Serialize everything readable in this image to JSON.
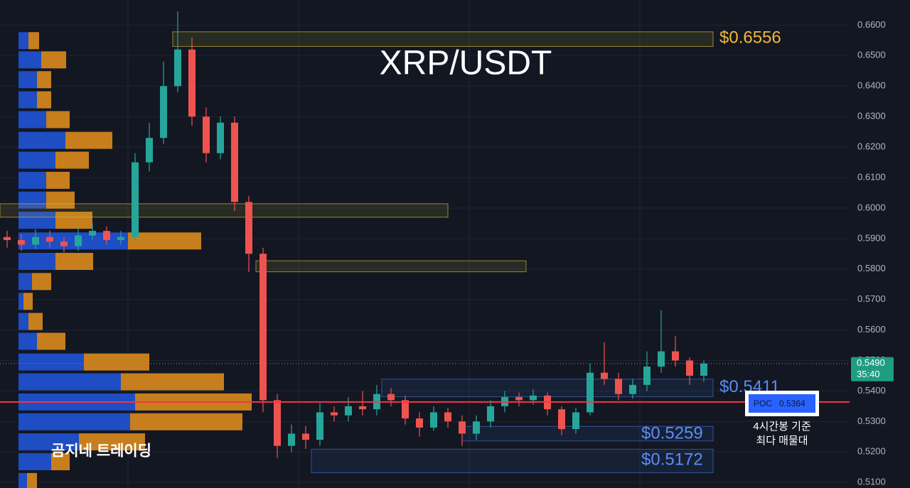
{
  "chart_data": {
    "type": "candlestick",
    "title": "XRP/USDT",
    "watermark": "곰지네 트레이딩",
    "note": [
      "4시간봉 기준",
      "최다 매물대"
    ],
    "up_color": "#26a69a",
    "down_color": "#ef5350",
    "grid": true,
    "ylim": [
      0.50818,
      0.66824
    ],
    "yticks": [
      {
        "value": 0.66,
        "label": "0.6600"
      },
      {
        "value": 0.65,
        "label": "0.6500"
      },
      {
        "value": 0.64,
        "label": "0.6400"
      },
      {
        "value": 0.63,
        "label": "0.6300"
      },
      {
        "value": 0.62,
        "label": "0.6200"
      },
      {
        "value": 0.61,
        "label": "0.6100"
      },
      {
        "value": 0.6,
        "label": "0.6000"
      },
      {
        "value": 0.59,
        "label": "0.5900"
      },
      {
        "value": 0.58,
        "label": "0.5800"
      },
      {
        "value": 0.57,
        "label": "0.5700"
      },
      {
        "value": 0.56,
        "label": "0.5600"
      },
      {
        "value": 0.55,
        "label": "0.5500"
      },
      {
        "value": 0.54,
        "label": "0.5400"
      },
      {
        "value": 0.53,
        "label": "0.5300"
      },
      {
        "value": 0.52,
        "label": "0.5200"
      },
      {
        "value": 0.51,
        "label": "0.5100"
      }
    ],
    "open": [
      0.5905,
      0.5895,
      0.588,
      0.5905,
      0.589,
      0.5875,
      0.591,
      0.5925,
      0.5895,
      0.5905,
      0.615,
      0.623,
      0.64,
      0.652,
      0.63,
      0.618,
      0.628,
      0.602,
      0.585,
      0.537,
      0.522,
      0.526,
      0.524,
      0.533,
      0.532,
      0.535,
      0.534,
      0.539,
      0.537,
      0.531,
      0.528,
      0.533,
      0.53,
      0.526,
      0.53,
      0.535,
      0.538,
      0.537,
      0.5385,
      0.534,
      0.5275,
      0.533,
      0.546,
      0.544,
      0.539,
      0.542,
      0.548,
      0.553,
      0.55,
      0.545
    ],
    "high": [
      0.5925,
      0.5915,
      0.593,
      0.5925,
      0.5905,
      0.5935,
      0.595,
      0.594,
      0.5925,
      0.618,
      0.628,
      0.648,
      0.6645,
      0.656,
      0.633,
      0.63,
      0.63,
      0.604,
      0.587,
      0.539,
      0.529,
      0.5285,
      0.536,
      0.535,
      0.538,
      0.54,
      0.542,
      0.541,
      0.5385,
      0.533,
      0.535,
      0.5345,
      0.532,
      0.532,
      0.537,
      0.54,
      0.5395,
      0.5405,
      0.5395,
      0.535,
      0.5345,
      0.549,
      0.556,
      0.546,
      0.544,
      0.553,
      0.5665,
      0.558,
      0.551,
      0.55
    ],
    "low": [
      0.587,
      0.586,
      0.5865,
      0.587,
      0.5855,
      0.586,
      0.5895,
      0.588,
      0.588,
      0.589,
      0.612,
      0.621,
      0.638,
      0.627,
      0.615,
      0.616,
      0.599,
      0.579,
      0.533,
      0.518,
      0.52,
      0.521,
      0.522,
      0.53,
      0.53,
      0.532,
      0.532,
      0.535,
      0.529,
      0.525,
      0.527,
      0.528,
      0.522,
      0.524,
      0.528,
      0.533,
      0.535,
      0.5355,
      0.532,
      0.5255,
      0.526,
      0.532,
      0.542,
      0.537,
      0.5375,
      0.54,
      0.546,
      0.548,
      0.542,
      0.543
    ],
    "close": [
      0.5895,
      0.588,
      0.5905,
      0.589,
      0.5875,
      0.591,
      0.5925,
      0.5895,
      0.5905,
      0.615,
      0.623,
      0.64,
      0.652,
      0.63,
      0.618,
      0.628,
      0.602,
      0.585,
      0.537,
      0.522,
      0.526,
      0.524,
      0.533,
      0.532,
      0.535,
      0.534,
      0.539,
      0.537,
      0.531,
      0.528,
      0.533,
      0.53,
      0.526,
      0.53,
      0.535,
      0.538,
      0.537,
      0.5385,
      0.534,
      0.5275,
      0.533,
      0.546,
      0.544,
      0.539,
      0.542,
      0.548,
      0.553,
      0.55,
      0.545,
      0.549
    ],
    "volume_profile": {
      "price": [
        0.6549,
        0.6486,
        0.6421,
        0.6355,
        0.629,
        0.6222,
        0.6157,
        0.6091,
        0.6026,
        0.596,
        0.5892,
        0.5825,
        0.5759,
        0.5694,
        0.5628,
        0.5563,
        0.5495,
        0.543,
        0.5364,
        0.5299,
        0.5233,
        0.5168,
        0.5103
      ],
      "buy": [
        14,
        32,
        26,
        26,
        39,
        66,
        52,
        39,
        39,
        52,
        154,
        52,
        19,
        7,
        14,
        26,
        92,
        144,
        164,
        157,
        85,
        46,
        12
      ],
      "sell": [
        15,
        35,
        20,
        20,
        33,
        66,
        47,
        33,
        40,
        52,
        103,
        53,
        27,
        13,
        20,
        40,
        92,
        145,
        164,
        158,
        93,
        26,
        14
      ],
      "buy_color": "#2157e0",
      "sell_color": "#e8911c"
    },
    "zones": [
      {
        "top": 0.6578,
        "bottom": 0.653,
        "color": "#c9b43a",
        "label": "$0.6556",
        "value": 0.6556
      },
      {
        "top": 0.6014,
        "bottom": 0.597,
        "color": "#c9b43a"
      },
      {
        "top": 0.5827,
        "bottom": 0.5791,
        "color": "#c9b43a"
      },
      {
        "top": 0.5439,
        "bottom": 0.5381,
        "color": "#3b6bc9",
        "label": "$0.5411",
        "value": 0.5411
      },
      {
        "top": 0.5284,
        "bottom": 0.5236,
        "color": "#3b6bc9",
        "label": "$0.5259",
        "value": 0.5259
      },
      {
        "top": 0.5209,
        "bottom": 0.5132,
        "color": "#3b6bc9",
        "label": "$0.5172",
        "value": 0.5172
      }
    ],
    "poc": {
      "label": "POC",
      "value": 0.5364,
      "value_label": "0.5364",
      "color": "#f23645"
    },
    "last_price": {
      "value": 0.549,
      "label": "0.5490",
      "timer": "35:40",
      "color": "#1f9d80"
    }
  }
}
